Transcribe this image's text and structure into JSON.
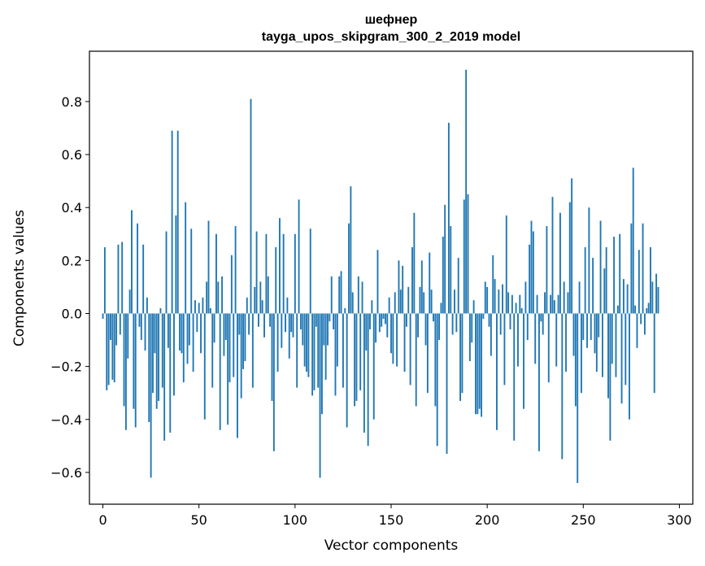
{
  "chart_data": {
    "type": "bar",
    "title_line1": "шефнер",
    "title_line2": "tayga_upos_skipgram_300_2_2019 model",
    "xlabel": "Vector components",
    "ylabel": "Components values",
    "xlim": [
      -7,
      307
    ],
    "ylim": [
      -0.72,
      0.99
    ],
    "xticks": [
      0,
      50,
      100,
      150,
      200,
      250,
      300
    ],
    "yticks": [
      -0.6,
      -0.4,
      -0.2,
      0.0,
      0.2,
      0.4,
      0.6,
      0.8
    ],
    "ytick_labels": [
      "−0.6",
      "−0.4",
      "−0.2",
      "0.0",
      "0.2",
      "0.4",
      "0.6",
      "0.8"
    ],
    "bar_color": "#1f77b4",
    "grid": false,
    "values": [
      -0.02,
      0.25,
      -0.29,
      -0.27,
      -0.1,
      -0.25,
      -0.26,
      -0.12,
      0.26,
      -0.08,
      0.27,
      -0.35,
      -0.44,
      -0.17,
      0.09,
      0.39,
      -0.36,
      -0.43,
      0.34,
      -0.05,
      -0.1,
      0.26,
      -0.14,
      0.06,
      -0.41,
      -0.62,
      -0.3,
      -0.15,
      -0.36,
      -0.33,
      0.02,
      -0.28,
      -0.48,
      0.31,
      -0.13,
      -0.45,
      0.69,
      -0.31,
      0.37,
      0.69,
      -0.14,
      -0.15,
      -0.26,
      0.42,
      -0.19,
      -0.12,
      0.32,
      -0.22,
      0.05,
      -0.07,
      0.04,
      -0.15,
      0.06,
      -0.4,
      0.12,
      0.35,
      0.02,
      -0.28,
      -0.11,
      0.3,
      0.12,
      -0.44,
      0.14,
      -0.16,
      -0.1,
      -0.42,
      -0.26,
      0.22,
      -0.24,
      0.33,
      -0.47,
      -0.08,
      -0.32,
      -0.21,
      -0.18,
      0.06,
      -0.08,
      0.81,
      -0.28,
      0.1,
      0.31,
      -0.05,
      0.12,
      0.05,
      -0.09,
      0.3,
      0.14,
      -0.05,
      -0.33,
      -0.52,
      0.25,
      -0.22,
      0.36,
      -0.13,
      0.3,
      -0.07,
      0.06,
      -0.17,
      -0.07,
      -0.09,
      0.3,
      -0.28,
      0.43,
      -0.06,
      -0.12,
      -0.2,
      -0.22,
      -0.24,
      0.32,
      -0.31,
      -0.29,
      -0.05,
      -0.28,
      -0.62,
      -0.38,
      -0.12,
      -0.25,
      -0.12,
      -0.03,
      0.14,
      -0.06,
      -0.31,
      -0.2,
      0.14,
      0.16,
      -0.28,
      0.02,
      -0.43,
      0.34,
      0.48,
      0.08,
      -0.35,
      -0.33,
      0.14,
      -0.29,
      0.12,
      -0.45,
      -0.14,
      -0.5,
      -0.06,
      0.05,
      -0.4,
      -0.11,
      0.24,
      -0.07,
      -0.05,
      -0.02,
      -0.04,
      -0.09,
      0.06,
      -0.15,
      -0.19,
      0.08,
      -0.2,
      0.2,
      0.09,
      0.18,
      -0.22,
      -0.05,
      0.1,
      -0.27,
      0.25,
      0.38,
      -0.35,
      -0.09,
      0.1,
      0.2,
      0.08,
      -0.12,
      -0.3,
      0.23,
      0.09,
      -0.03,
      -0.35,
      -0.5,
      -0.1,
      0.04,
      0.29,
      0.41,
      -0.53,
      0.72,
      0.33,
      -0.08,
      0.09,
      -0.07,
      0.21,
      -0.33,
      -0.3,
      0.43,
      0.92,
      0.45,
      -0.18,
      -0.11,
      0.05,
      -0.38,
      -0.38,
      -0.36,
      -0.39,
      -0.02,
      0.12,
      0.1,
      -0.05,
      -0.16,
      0.22,
      0.13,
      -0.44,
      0.09,
      -0.08,
      0.11,
      -0.27,
      0.37,
      0.08,
      -0.06,
      0.07,
      -0.48,
      0.04,
      -0.2,
      0.07,
      0.02,
      -0.36,
      0.12,
      -0.1,
      0.26,
      0.35,
      0.31,
      -0.19,
      0.07,
      -0.52,
      -0.03,
      -0.08,
      0.08,
      0.33,
      -0.26,
      0.07,
      0.44,
      0.05,
      -0.2,
      0.07,
      0.38,
      -0.55,
      0.12,
      -0.22,
      0.08,
      0.42,
      0.51,
      -0.16,
      -0.35,
      -0.64,
      0.12,
      -0.3,
      -0.1,
      0.25,
      -0.13,
      0.4,
      -0.1,
      0.21,
      -0.15,
      -0.22,
      -0.09,
      0.35,
      -0.24,
      0.17,
      0.25,
      -0.32,
      -0.48,
      -0.19,
      0.29,
      -0.24,
      0.03,
      0.3,
      -0.34,
      0.13,
      -0.27,
      0.11,
      -0.4,
      0.34,
      0.55,
      0.03,
      -0.13,
      0.24,
      -0.04,
      0.34,
      -0.08,
      0.02,
      0.04,
      0.25,
      0.12,
      -0.3,
      0.15,
      0.1
    ]
  }
}
